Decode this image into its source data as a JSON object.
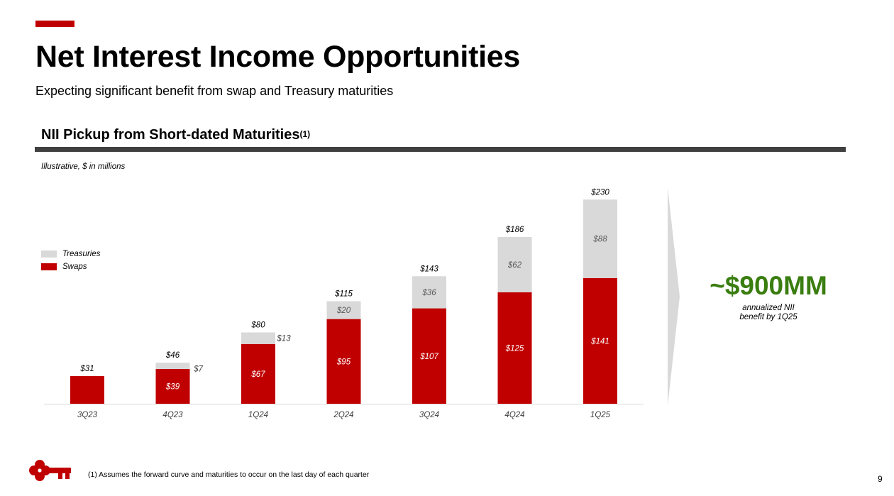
{
  "slide": {
    "title": "Net Interest Income Opportunities",
    "subtitle": "Expecting significant benefit from swap and Treasury maturities",
    "section_title": "NII Pickup from Short-dated Maturities",
    "section_title_sup": "(1)",
    "units_note": "Illustrative, $ in millions",
    "footnote": "(1) Assumes the forward curve and maturities to occur on the last day of each quarter",
    "page_number": "9",
    "colors": {
      "accent": "#c00000",
      "treasuries": "#d9d9d9",
      "callout": "#3a7d10",
      "rule": "#404040"
    }
  },
  "legend": [
    {
      "label": "Treasuries",
      "color": "#d9d9d9"
    },
    {
      "label": "Swaps",
      "color": "#c00000"
    }
  ],
  "callout": {
    "value": "~$900MM",
    "caption_line1": "annualized NII",
    "caption_line2": "benefit by 1Q25"
  },
  "chart_data": {
    "type": "bar",
    "stacked": true,
    "categories": [
      "3Q23",
      "4Q23",
      "1Q24",
      "2Q24",
      "3Q24",
      "4Q24",
      "1Q25"
    ],
    "series": [
      {
        "name": "Swaps",
        "color": "#c00000",
        "values": [
          31,
          39,
          67,
          95,
          107,
          125,
          141
        ],
        "labels": [
          "",
          "$39",
          "$67",
          "$95",
          "$107",
          "$125",
          "$141"
        ]
      },
      {
        "name": "Treasuries",
        "color": "#d9d9d9",
        "values": [
          0,
          7,
          13,
          20,
          36,
          62,
          88
        ],
        "labels": [
          "",
          "$7",
          "$13",
          "$20",
          "$36",
          "$62",
          "$88"
        ]
      }
    ],
    "totals": [
      "$31",
      "$46",
      "$80",
      "$115",
      "$143",
      "$186",
      "$230"
    ],
    "total_values": [
      31,
      46,
      80,
      115,
      143,
      186,
      230
    ],
    "ylim": [
      0,
      230
    ]
  }
}
